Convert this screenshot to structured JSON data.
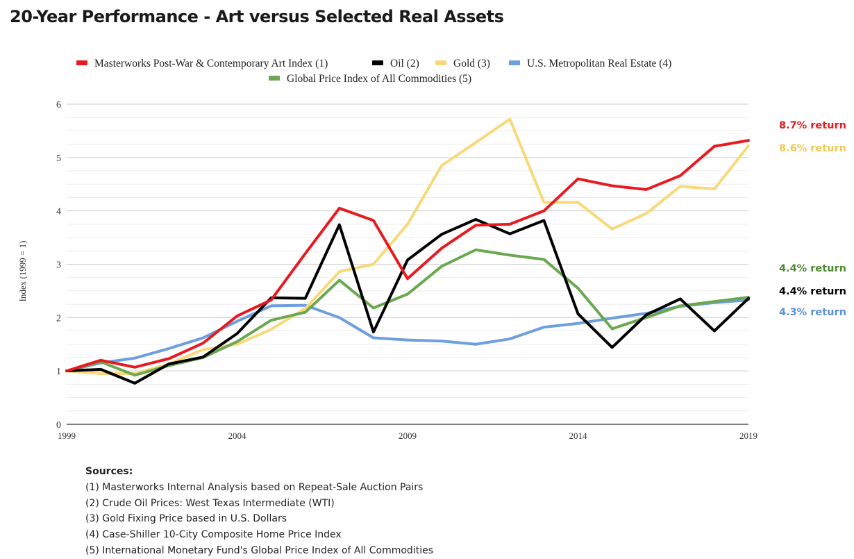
{
  "title": "20-Year Performance - Art versus Selected Real Assets",
  "chart_data": {
    "type": "line",
    "ylabel": "Index (1999 = 1)",
    "xlabel": "",
    "x": [
      1999,
      2000,
      2001,
      2002,
      2003,
      2004,
      2005,
      2006,
      2007,
      2008,
      2009,
      2010,
      2011,
      2012,
      2013,
      2014,
      2015,
      2016,
      2017,
      2018,
      2019
    ],
    "xticks": [
      1999,
      2004,
      2009,
      2014,
      2019
    ],
    "yticks": [
      0,
      1,
      2,
      3,
      4,
      5,
      6
    ],
    "ylim": [
      0,
      6
    ],
    "xlim": [
      1999,
      2019
    ],
    "minor_gridlines_per_unit": 4,
    "legend_position": "top",
    "series": [
      {
        "name": "Masterworks Post-War & Contemporary Art Index (1)",
        "color": "#e8191f",
        "values": [
          1.0,
          1.2,
          1.07,
          1.23,
          1.52,
          2.03,
          2.33,
          3.2,
          4.05,
          3.82,
          2.73,
          3.3,
          3.73,
          3.75,
          4.0,
          4.6,
          4.47,
          4.4,
          4.66,
          5.21,
          5.32
        ],
        "return_label": "8.7% return"
      },
      {
        "name": "Oil (2)",
        "color": "#000000",
        "values": [
          1.0,
          1.03,
          0.77,
          1.13,
          1.26,
          1.7,
          2.37,
          2.36,
          3.74,
          1.73,
          3.08,
          3.56,
          3.84,
          3.57,
          3.82,
          2.07,
          1.44,
          2.05,
          2.35,
          1.75,
          2.36
        ],
        "return_label": "4.4% return"
      },
      {
        "name": "Gold (3)",
        "color": "#f8d97a",
        "values": [
          1.0,
          0.95,
          0.95,
          1.13,
          1.4,
          1.5,
          1.78,
          2.17,
          2.86,
          3.0,
          3.75,
          4.85,
          5.28,
          5.72,
          4.16,
          4.16,
          3.66,
          3.95,
          4.46,
          4.41,
          5.22
        ],
        "return_label": "8.6% return"
      },
      {
        "name": "U.S. Metropolitan Real Estate (4)",
        "color": "#6c9ee0",
        "values": [
          1.0,
          1.15,
          1.24,
          1.42,
          1.62,
          1.93,
          2.22,
          2.23,
          2.0,
          1.62,
          1.58,
          1.56,
          1.5,
          1.6,
          1.82,
          1.89,
          1.99,
          2.08,
          2.21,
          2.28,
          2.33
        ],
        "return_label": "4.3% return"
      },
      {
        "name": "Global Price Index of All Commodities (5)",
        "color": "#6aa84f",
        "values": [
          1.0,
          1.17,
          0.92,
          1.1,
          1.25,
          1.55,
          1.95,
          2.1,
          2.7,
          2.18,
          2.44,
          2.96,
          3.27,
          3.17,
          3.09,
          2.55,
          1.79,
          2.0,
          2.22,
          2.3,
          2.38
        ],
        "return_label": "4.4% return"
      }
    ],
    "return_label_order": [
      0,
      2,
      4,
      1,
      3
    ]
  },
  "sources": {
    "heading": "Sources:",
    "items": [
      "(1) Masterworks Internal Analysis based on Repeat-Sale Auction Pairs",
      "(2) Crude Oil Prices: West Texas Intermediate (WTI)",
      "(3) Gold Fixing Price based in U.S. Dollars",
      "(4) Case-Shiller 10-City Composite Home Price Index",
      "(5) International Monetary Fund's Global Price Index of All Commodities"
    ]
  }
}
